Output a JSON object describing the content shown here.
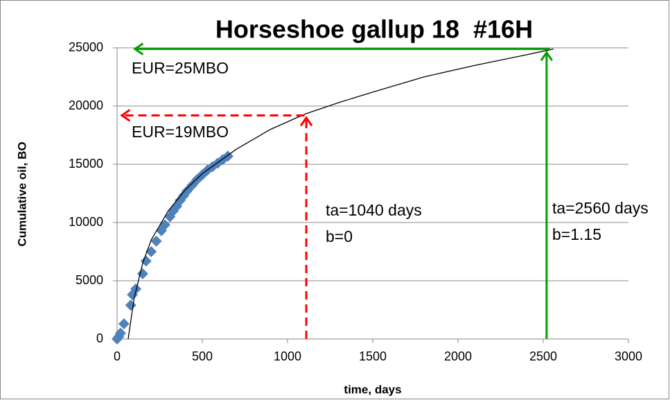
{
  "chart_data": {
    "type": "scatter",
    "title": "Horseshoe gallup 18  #16H",
    "x_label": "time, days",
    "y_label": "Cumulative oil, BO",
    "xlim": [
      0,
      3000
    ],
    "xticks": [
      0,
      500,
      1000,
      1500,
      2000,
      2500,
      3000
    ],
    "ylim": [
      0,
      25000
    ],
    "yticks": [
      0,
      5000,
      10000,
      15000,
      20000,
      25000
    ],
    "grid": true,
    "series": [
      {
        "color": "#4f81bd",
        "marker": "diamond",
        "x": [
          0,
          10,
          20,
          40,
          80,
          90,
          110,
          150,
          170,
          200,
          230,
          260,
          280,
          310,
          330,
          350,
          370,
          390,
          410,
          440,
          470,
          500,
          530,
          560,
          590,
          620,
          650
        ],
        "values": [
          0,
          200,
          500,
          1300,
          2900,
          3800,
          4300,
          5600,
          6700,
          7500,
          8400,
          9300,
          9800,
          10500,
          11000,
          11400,
          11900,
          12300,
          12700,
          13200,
          13700,
          14100,
          14500,
          14800,
          15100,
          15400,
          15700
        ]
      },
      {
        "color": "#000000",
        "marker": "line",
        "x": [
          65,
          80,
          100,
          150,
          200,
          300,
          400,
          500,
          700,
          900,
          1100,
          1300,
          1500,
          1800,
          2100,
          2400,
          2560
        ],
        "values": [
          0,
          1500,
          3500,
          6500,
          8500,
          11000,
          12800,
          14200,
          16300,
          18000,
          19300,
          20300,
          21200,
          22500,
          23500,
          24400,
          24900
        ]
      }
    ],
    "arrows": [
      {
        "color": "#00a000",
        "dashed": false,
        "x": [
          2540,
          105
        ],
        "y": [
          24900,
          24900
        ]
      },
      {
        "color": "#00a000",
        "dashed": false,
        "x": [
          2520,
          2520
        ],
        "y": [
          0,
          24600
        ]
      },
      {
        "color": "#ff0000",
        "dashed": true,
        "x": [
          1100,
          28
        ],
        "y": [
          19200,
          19200
        ]
      },
      {
        "color": "#ff0000",
        "dashed": true,
        "x": [
          1110,
          1110
        ],
        "y": [
          0,
          19000
        ]
      }
    ],
    "annotations": [
      "EUR=25MBO",
      "EUR=19MBO",
      "ta=1040 days",
      "b=0",
      "ta=2560 days",
      "b=1.15"
    ]
  }
}
